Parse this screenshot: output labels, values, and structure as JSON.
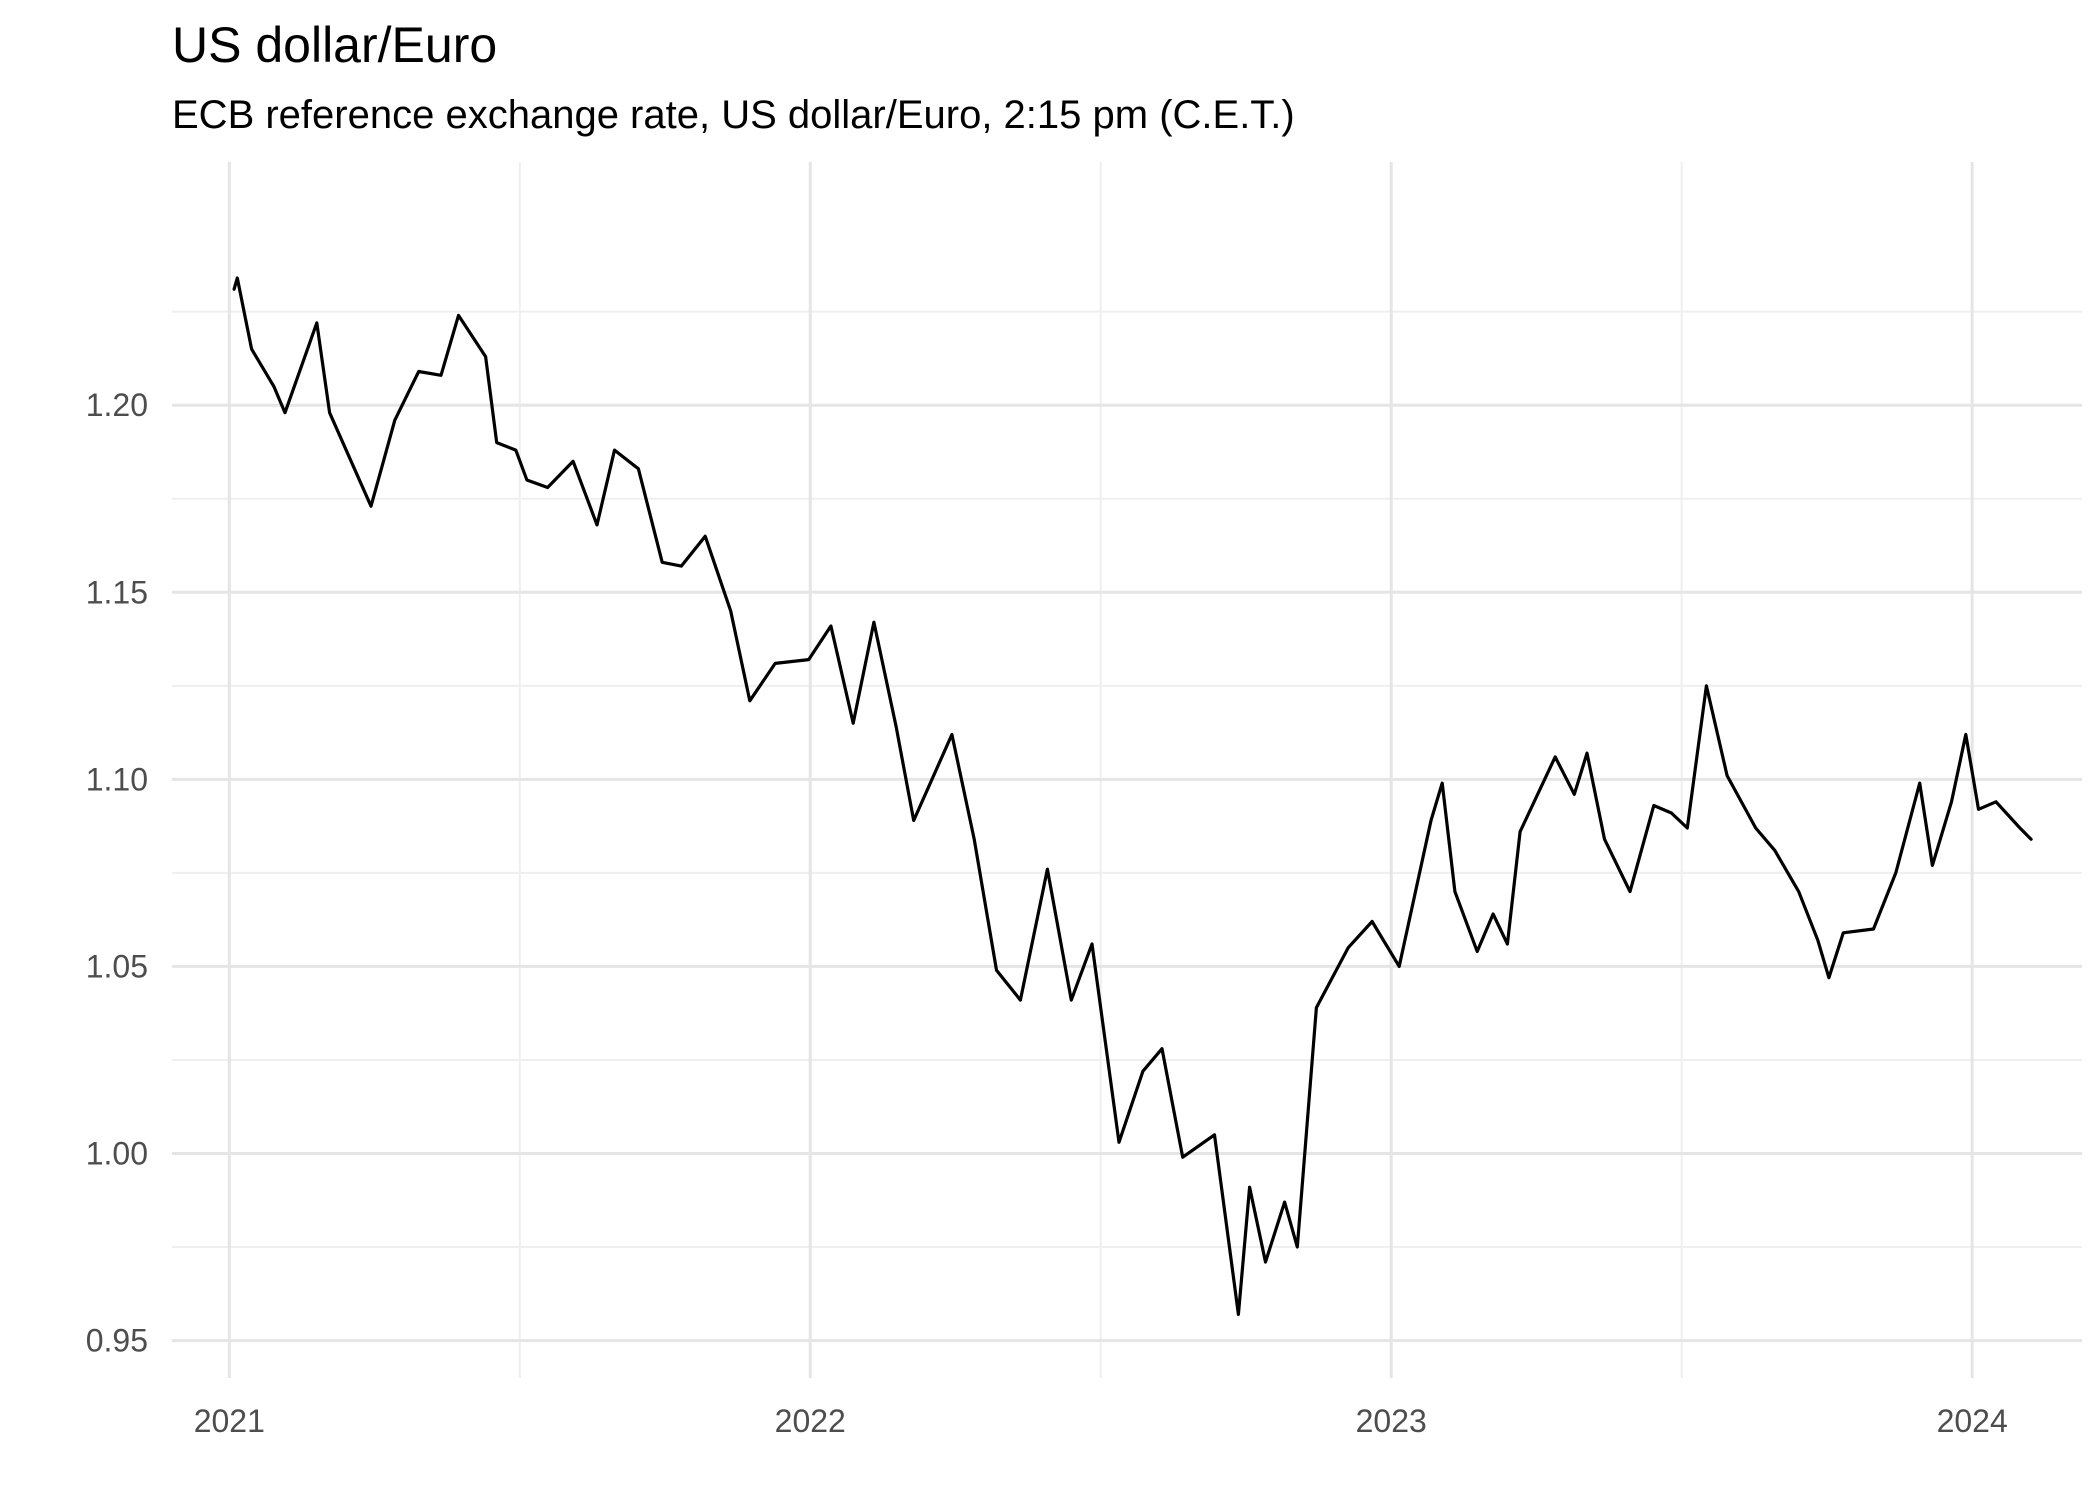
{
  "chart_data": {
    "type": "line",
    "title": "US dollar/Euro",
    "subtitle": "ECB reference exchange rate, US dollar/Euro, 2:15 pm (C.E.T.)",
    "xlabel": "",
    "ylabel": "",
    "xlim": [
      "2020-11-26",
      "2024-03-10"
    ],
    "ylim": [
      0.94,
      1.265
    ],
    "x_ticks": [
      "2021-01-01",
      "2022-01-01",
      "2023-01-01",
      "2024-01-01"
    ],
    "x_tick_labels": [
      "2021",
      "2022",
      "2023",
      "2024"
    ],
    "y_ticks": [
      0.95,
      1.0,
      1.05,
      1.1,
      1.15,
      1.2
    ],
    "y_tick_labels": [
      "0.95",
      "1.00",
      "1.05",
      "1.10",
      "1.15",
      "1.20"
    ],
    "grid": true,
    "legend": "none",
    "colors": {
      "line": "#000000",
      "grid": "#e5e5e5",
      "tick_text": "#4d4d4d"
    },
    "x": [
      "2021-01-04",
      "2021-01-06",
      "2021-01-15",
      "2021-01-29",
      "2021-02-05",
      "2021-02-25",
      "2021-03-05",
      "2021-03-31",
      "2021-04-15",
      "2021-04-30",
      "2021-05-14",
      "2021-05-25",
      "2021-06-11",
      "2021-06-18",
      "2021-06-30",
      "2021-07-07",
      "2021-07-20",
      "2021-08-05",
      "2021-08-20",
      "2021-08-31",
      "2021-09-15",
      "2021-09-30",
      "2021-10-12",
      "2021-10-27",
      "2021-11-12",
      "2021-11-24",
      "2021-12-10",
      "2021-12-31",
      "2022-01-14",
      "2022-01-28",
      "2022-02-10",
      "2022-02-24",
      "2022-03-07",
      "2022-03-31",
      "2022-04-14",
      "2022-04-28",
      "2022-05-13",
      "2022-05-30",
      "2022-06-14",
      "2022-06-27",
      "2022-07-14",
      "2022-07-29",
      "2022-08-10",
      "2022-08-23",
      "2022-09-12",
      "2022-09-27",
      "2022-10-04",
      "2022-10-14",
      "2022-10-26",
      "2022-11-03",
      "2022-11-15",
      "2022-12-05",
      "2022-12-20",
      "2023-01-06",
      "2023-01-26",
      "2023-02-02",
      "2023-02-10",
      "2023-02-24",
      "2023-03-06",
      "2023-03-15",
      "2023-03-23",
      "2023-04-14",
      "2023-04-26",
      "2023-05-04",
      "2023-05-15",
      "2023-05-31",
      "2023-06-15",
      "2023-06-26",
      "2023-07-06",
      "2023-07-18",
      "2023-07-31",
      "2023-08-18",
      "2023-08-30",
      "2023-09-14",
      "2023-09-26",
      "2023-10-03",
      "2023-10-12",
      "2023-10-31",
      "2023-11-14",
      "2023-11-29",
      "2023-12-07",
      "2023-12-19",
      "2023-12-28",
      "2024-01-05",
      "2024-01-16",
      "2024-01-31",
      "2024-02-07"
    ],
    "series": [
      {
        "values": [
          1.231,
          1.234,
          1.215,
          1.205,
          1.198,
          1.222,
          1.198,
          1.173,
          1.196,
          1.209,
          1.208,
          1.224,
          1.213,
          1.19,
          1.188,
          1.18,
          1.178,
          1.185,
          1.168,
          1.188,
          1.183,
          1.158,
          1.157,
          1.165,
          1.145,
          1.121,
          1.131,
          1.132,
          1.141,
          1.115,
          1.142,
          1.114,
          1.089,
          1.112,
          1.084,
          1.049,
          1.041,
          1.076,
          1.041,
          1.056,
          1.003,
          1.022,
          1.028,
          0.999,
          1.005,
          0.957,
          0.991,
          0.971,
          0.987,
          0.975,
          1.039,
          1.055,
          1.062,
          1.05,
          1.089,
          1.099,
          1.07,
          1.054,
          1.064,
          1.056,
          1.086,
          1.106,
          1.096,
          1.107,
          1.084,
          1.07,
          1.093,
          1.091,
          1.087,
          1.125,
          1.101,
          1.087,
          1.081,
          1.07,
          1.057,
          1.047,
          1.059,
          1.06,
          1.075,
          1.099,
          1.077,
          1.094,
          1.112,
          1.092,
          1.094,
          1.087,
          1.084
        ]
      }
    ]
  }
}
